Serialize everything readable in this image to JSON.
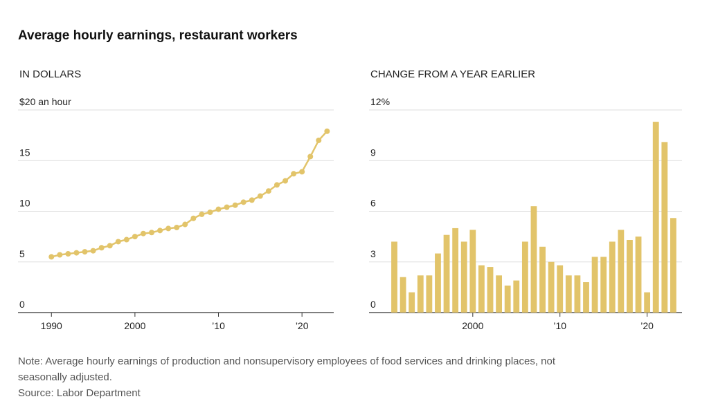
{
  "title": "Average hourly earnings, restaurant workers",
  "note": "Note: Average hourly earnings of production and nonsupervisory employees of food services and drinking places, not",
  "note_cont": "seasonally adjusted.",
  "source": "Source: Labor Department",
  "chart_data": [
    {
      "type": "line",
      "subtitle": "IN DOLLARS",
      "color": "#e2c46a",
      "x": [
        1990,
        1991,
        1992,
        1993,
        1994,
        1995,
        1996,
        1997,
        1998,
        1999,
        2000,
        2001,
        2002,
        2003,
        2004,
        2005,
        2006,
        2007,
        2008,
        2009,
        2010,
        2011,
        2012,
        2013,
        2014,
        2015,
        2016,
        2017,
        2018,
        2019,
        2020,
        2021,
        2022,
        2023
      ],
      "values": [
        5.5,
        5.7,
        5.8,
        5.9,
        6.0,
        6.1,
        6.4,
        6.6,
        7.0,
        7.2,
        7.5,
        7.8,
        7.9,
        8.1,
        8.3,
        8.4,
        8.7,
        9.3,
        9.7,
        9.9,
        10.2,
        10.4,
        10.6,
        10.9,
        11.1,
        11.5,
        12.0,
        12.6,
        13.0,
        13.7,
        13.9,
        15.4,
        17.0,
        17.9
      ],
      "xlim": [
        1986,
        2023.8
      ],
      "xticks": [
        1990,
        2000,
        {
          "value": 2010,
          "label": "’10"
        },
        {
          "value": 2020,
          "label": "’20"
        }
      ],
      "ylim": [
        0,
        20
      ],
      "yticks": [
        0,
        5,
        10,
        15,
        {
          "value": 20,
          "label": "$20 an hour"
        }
      ],
      "grid": true
    },
    {
      "type": "bar",
      "subtitle": "CHANGE FROM A YEAR EARLIER",
      "color": "#e2c46a",
      "x": [
        1991,
        1992,
        1993,
        1994,
        1995,
        1996,
        1997,
        1998,
        1999,
        2000,
        2001,
        2002,
        2003,
        2004,
        2005,
        2006,
        2007,
        2008,
        2009,
        2010,
        2011,
        2012,
        2013,
        2014,
        2015,
        2016,
        2017,
        2018,
        2019,
        2020,
        2021,
        2022,
        2023
      ],
      "values": [
        4.2,
        2.1,
        1.2,
        2.2,
        2.2,
        3.5,
        4.6,
        5.0,
        4.2,
        4.9,
        2.8,
        2.7,
        2.2,
        1.6,
        1.9,
        4.2,
        6.3,
        3.9,
        3.0,
        2.8,
        2.2,
        2.2,
        1.8,
        3.3,
        3.3,
        4.2,
        4.9,
        4.3,
        4.5,
        1.2,
        11.3,
        10.1,
        5.6
      ],
      "xlim": [
        1988.1,
        2024
      ],
      "xticks": [
        2000,
        {
          "value": 2010,
          "label": "’10"
        },
        {
          "value": 2020,
          "label": "’20"
        }
      ],
      "ylim": [
        0,
        12
      ],
      "yticks": [
        0,
        3,
        6,
        9,
        {
          "value": 12,
          "label": "12%"
        }
      ],
      "grid": true
    }
  ]
}
